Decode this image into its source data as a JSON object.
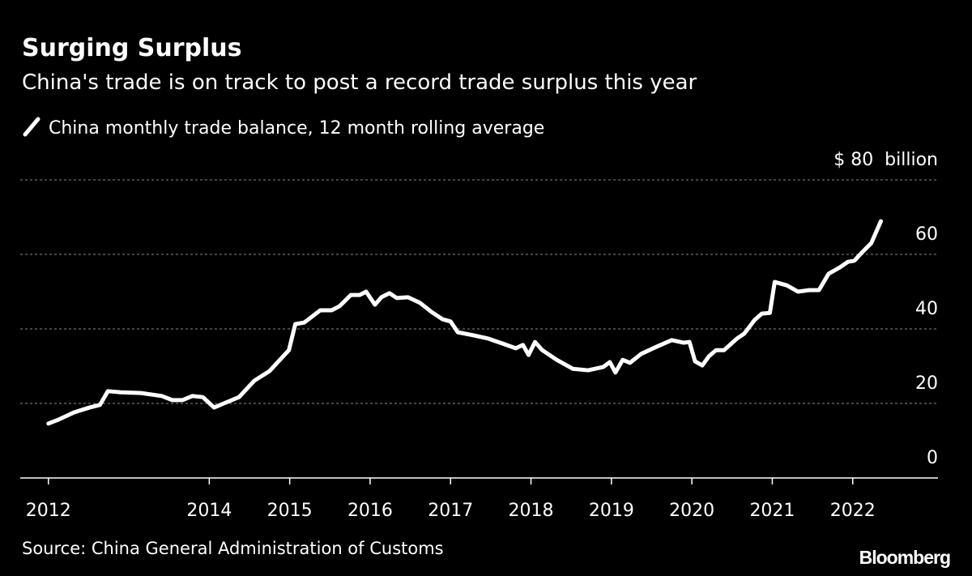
{
  "chart_data": {
    "type": "line",
    "title": "Surging Surplus",
    "subtitle": "China's trade is on track to post a record trade surplus this year",
    "source": "Source: China General Administration of Customs",
    "brand": "Bloomberg",
    "series": [
      {
        "name": "China monthly trade balance, 12 month rolling average",
        "color": "#ffffff",
        "x": [
          2012.0,
          2012.13,
          2012.32,
          2012.51,
          2012.64,
          2012.74,
          2012.9,
          2013.15,
          2013.41,
          2013.54,
          2013.67,
          2013.79,
          2013.92,
          2014.06,
          2014.18,
          2014.37,
          2014.56,
          2014.75,
          2014.99,
          2015.07,
          2015.18,
          2015.38,
          2015.52,
          2015.62,
          2015.76,
          2015.87,
          2015.95,
          2016.06,
          2016.14,
          2016.24,
          2016.33,
          2016.47,
          2016.62,
          2016.76,
          2016.9,
          2017.0,
          2017.09,
          2017.28,
          2017.47,
          2017.67,
          2017.81,
          2017.9,
          2017.97,
          2018.05,
          2018.14,
          2018.32,
          2018.52,
          2018.71,
          2018.9,
          2018.98,
          2019.05,
          2019.14,
          2019.23,
          2019.37,
          2019.56,
          2019.75,
          2019.9,
          2019.97,
          2020.04,
          2020.13,
          2020.21,
          2020.3,
          2020.4,
          2020.56,
          2020.65,
          2020.78,
          2020.87,
          2020.97,
          2021.03,
          2021.18,
          2021.32,
          2021.46,
          2021.58,
          2021.7,
          2021.84,
          2021.94,
          2022.02,
          2022.11,
          2022.23,
          2022.35
        ],
        "values": [
          14.6,
          15.7,
          17.6,
          18.9,
          19.6,
          23.3,
          23.0,
          22.8,
          22.0,
          20.9,
          20.9,
          22.0,
          21.7,
          18.9,
          20.0,
          21.7,
          26.1,
          28.7,
          34.3,
          41.3,
          41.7,
          45.0,
          45.0,
          46.1,
          49.1,
          49.1,
          50.0,
          46.5,
          48.5,
          49.6,
          48.3,
          48.5,
          47.0,
          44.6,
          42.6,
          42.0,
          39.1,
          38.3,
          37.4,
          35.9,
          34.8,
          35.7,
          33.0,
          36.5,
          34.3,
          31.7,
          29.3,
          28.9,
          29.8,
          31.1,
          28.3,
          31.7,
          30.9,
          33.3,
          35.2,
          37.0,
          36.3,
          36.5,
          31.3,
          30.2,
          32.6,
          34.3,
          34.3,
          37.4,
          38.7,
          42.4,
          44.1,
          44.3,
          52.6,
          51.7,
          50.0,
          50.4,
          50.4,
          54.8,
          56.5,
          58.0,
          58.3,
          60.4,
          63.0,
          68.9
        ]
      }
    ],
    "xlim": [
      2011.65,
      2023.06
    ],
    "xticks": [
      2012,
      2014,
      2015,
      2016,
      2017,
      2018,
      2019,
      2020,
      2021,
      2022
    ],
    "ylim": [
      0,
      80
    ],
    "yticks": [
      0,
      20,
      40,
      60,
      {
        "value": 80,
        "label": "$ 80  billion"
      }
    ],
    "grid": true
  }
}
